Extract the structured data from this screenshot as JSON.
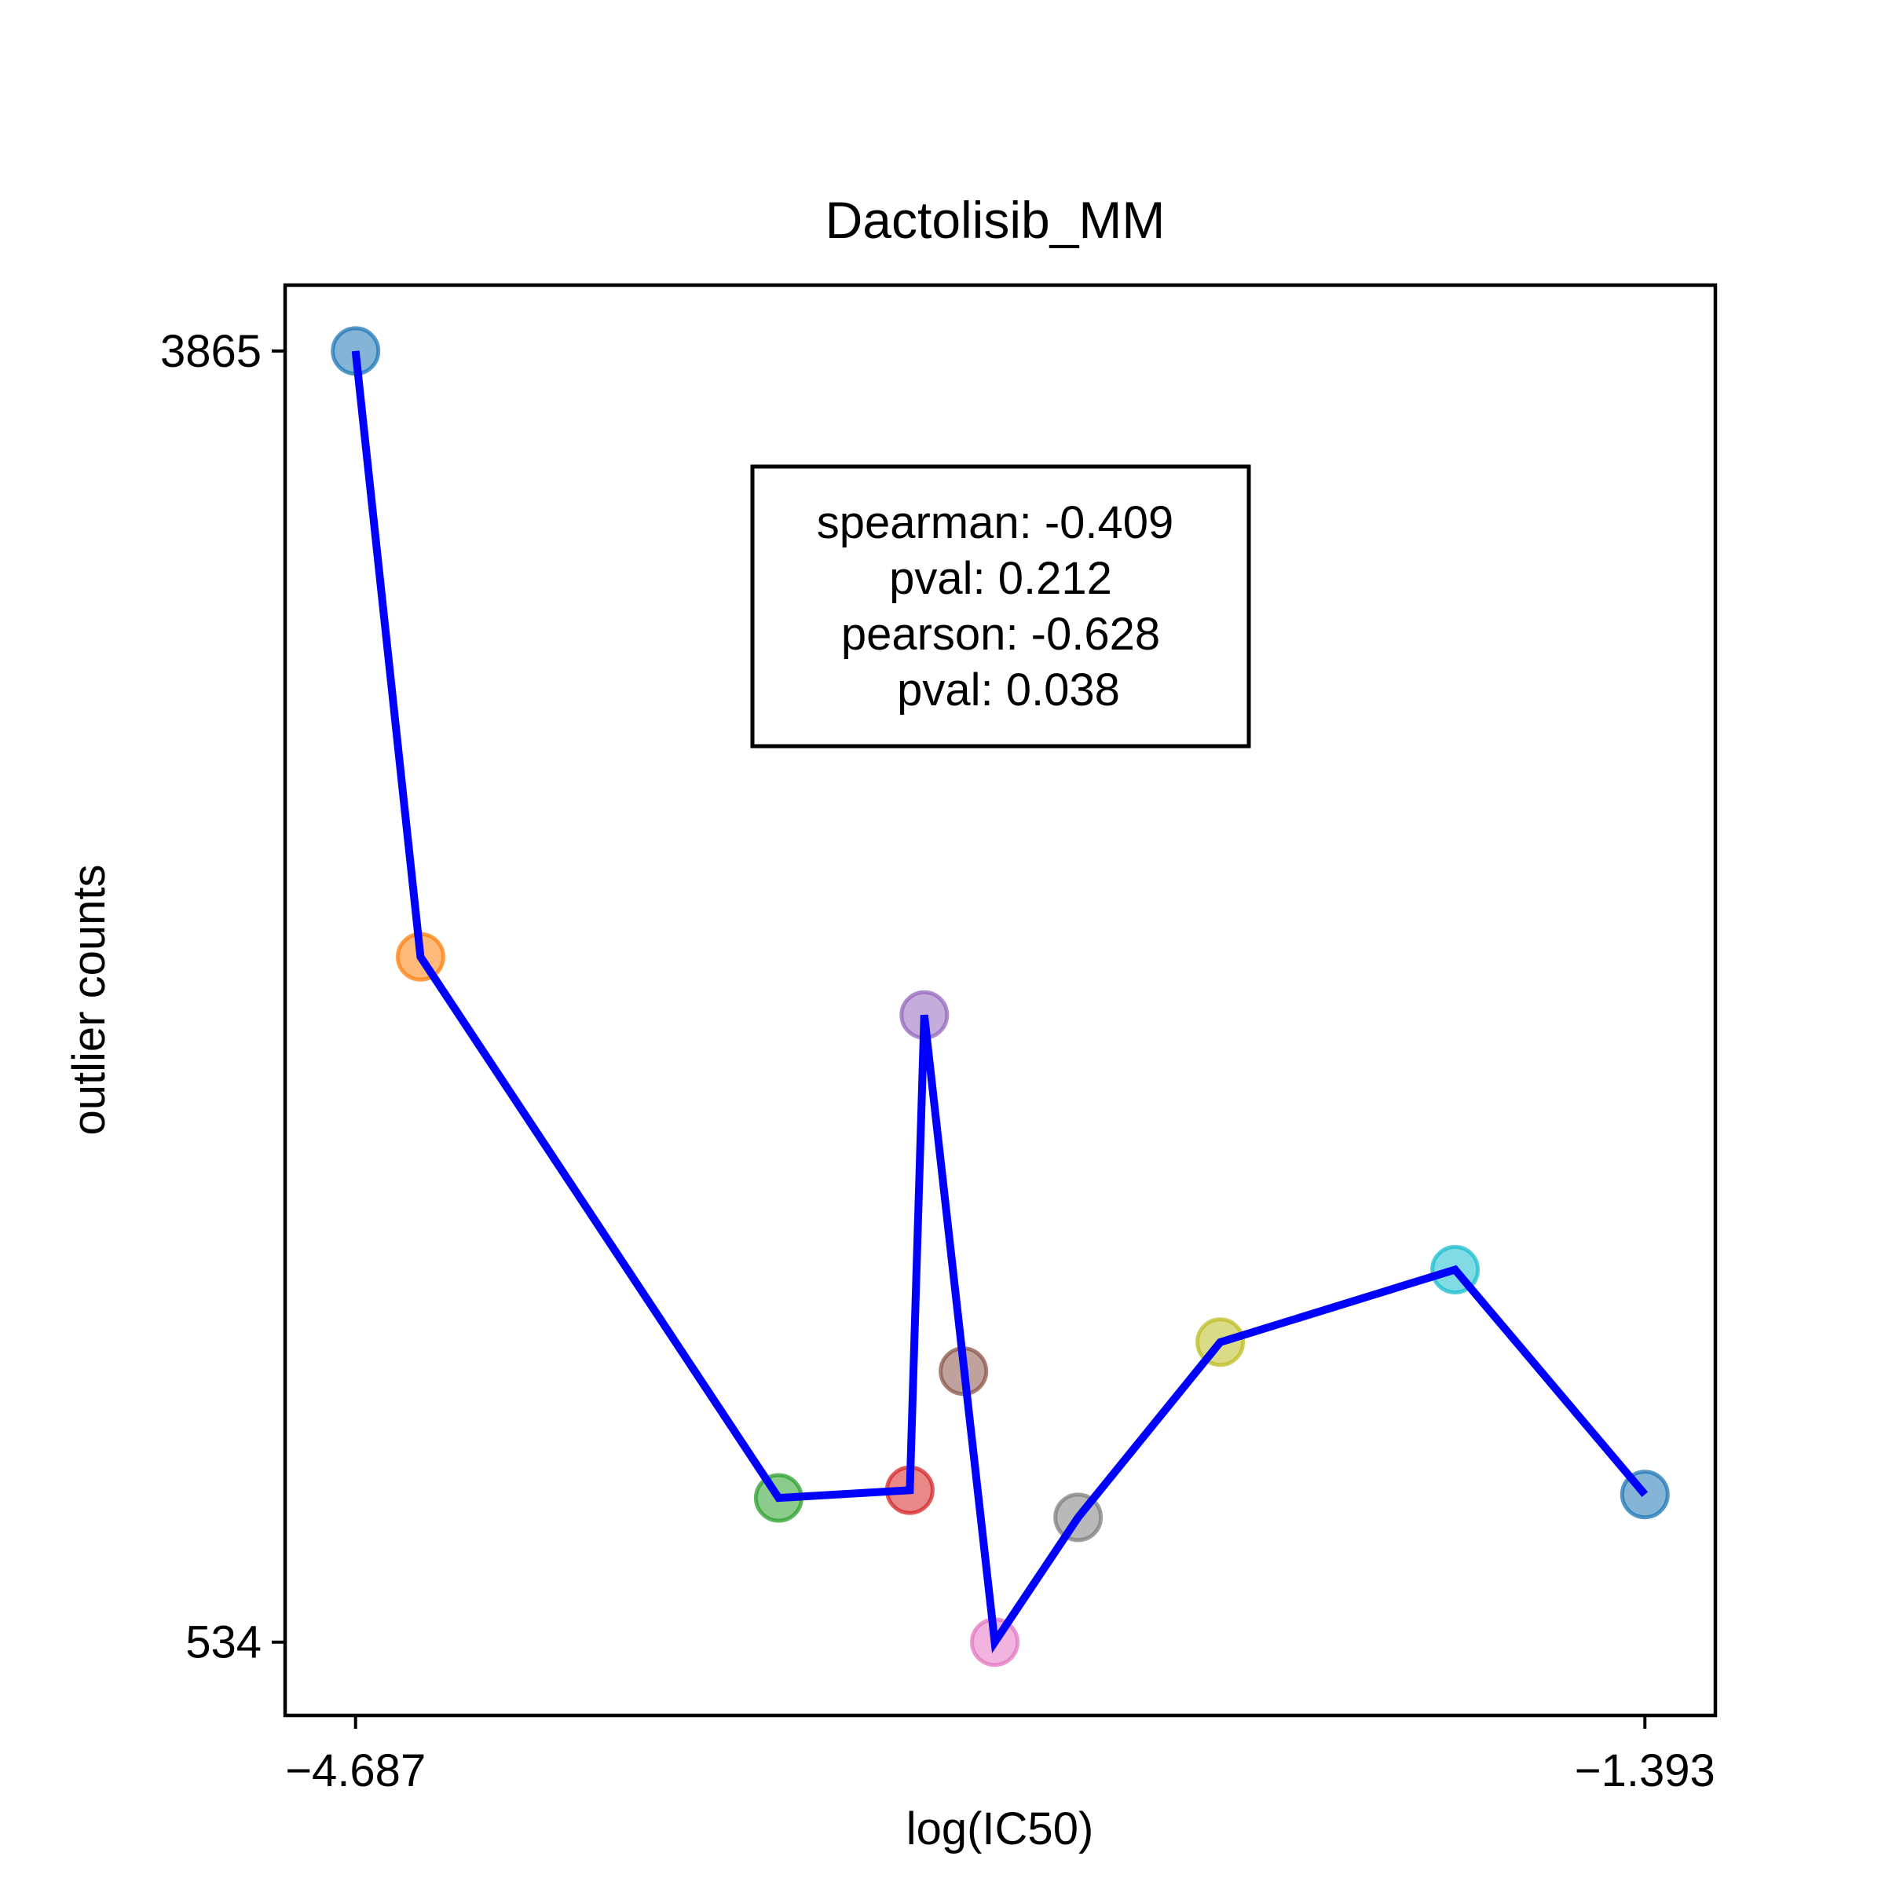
{
  "chart_data": {
    "type": "scatter",
    "title": "Dactolisib_MM",
    "xlabel": "log(IC50)",
    "ylabel": "outlier counts",
    "xlim": [
      -4.867,
      -1.213
    ],
    "ylim": [
      345,
      4035
    ],
    "x_ticks": [
      -4.687,
      -1.393
    ],
    "x_tick_labels": [
      "−4.687",
      "−1.393"
    ],
    "y_ticks": [
      3865,
      534
    ],
    "y_tick_labels": [
      "3865",
      "534"
    ],
    "grid": false,
    "legend": "none",
    "line_color": "#0000ff",
    "points": [
      {
        "x": -4.687,
        "y": 3865,
        "color": "#1f77b4"
      },
      {
        "x": -4.521,
        "y": 2302,
        "color": "#ff7f0e"
      },
      {
        "x": -3.606,
        "y": 906,
        "color": "#2ca02c"
      },
      {
        "x": -3.271,
        "y": 926,
        "color": "#d62728"
      },
      {
        "x": -3.234,
        "y": 2152,
        "color": "#9467bd"
      },
      {
        "x": -3.134,
        "y": 1233,
        "color": "#8c564b"
      },
      {
        "x": -3.054,
        "y": 534,
        "color": "#e377c2"
      },
      {
        "x": -2.841,
        "y": 856,
        "color": "#7f7f7f"
      },
      {
        "x": -2.478,
        "y": 1308,
        "color": "#bcbd22"
      },
      {
        "x": -1.878,
        "y": 1495,
        "color": "#17becf"
      },
      {
        "x": -1.393,
        "y": 915,
        "color": "#1f77b4"
      }
    ],
    "line_order": [
      0,
      1,
      2,
      3,
      4,
      6,
      7,
      8,
      9,
      10
    ],
    "annotation": {
      "lines": [
        "spearman: -0.409",
        "pval: 0.212",
        "pearson: -0.628",
        "pval: 0.038"
      ]
    }
  }
}
